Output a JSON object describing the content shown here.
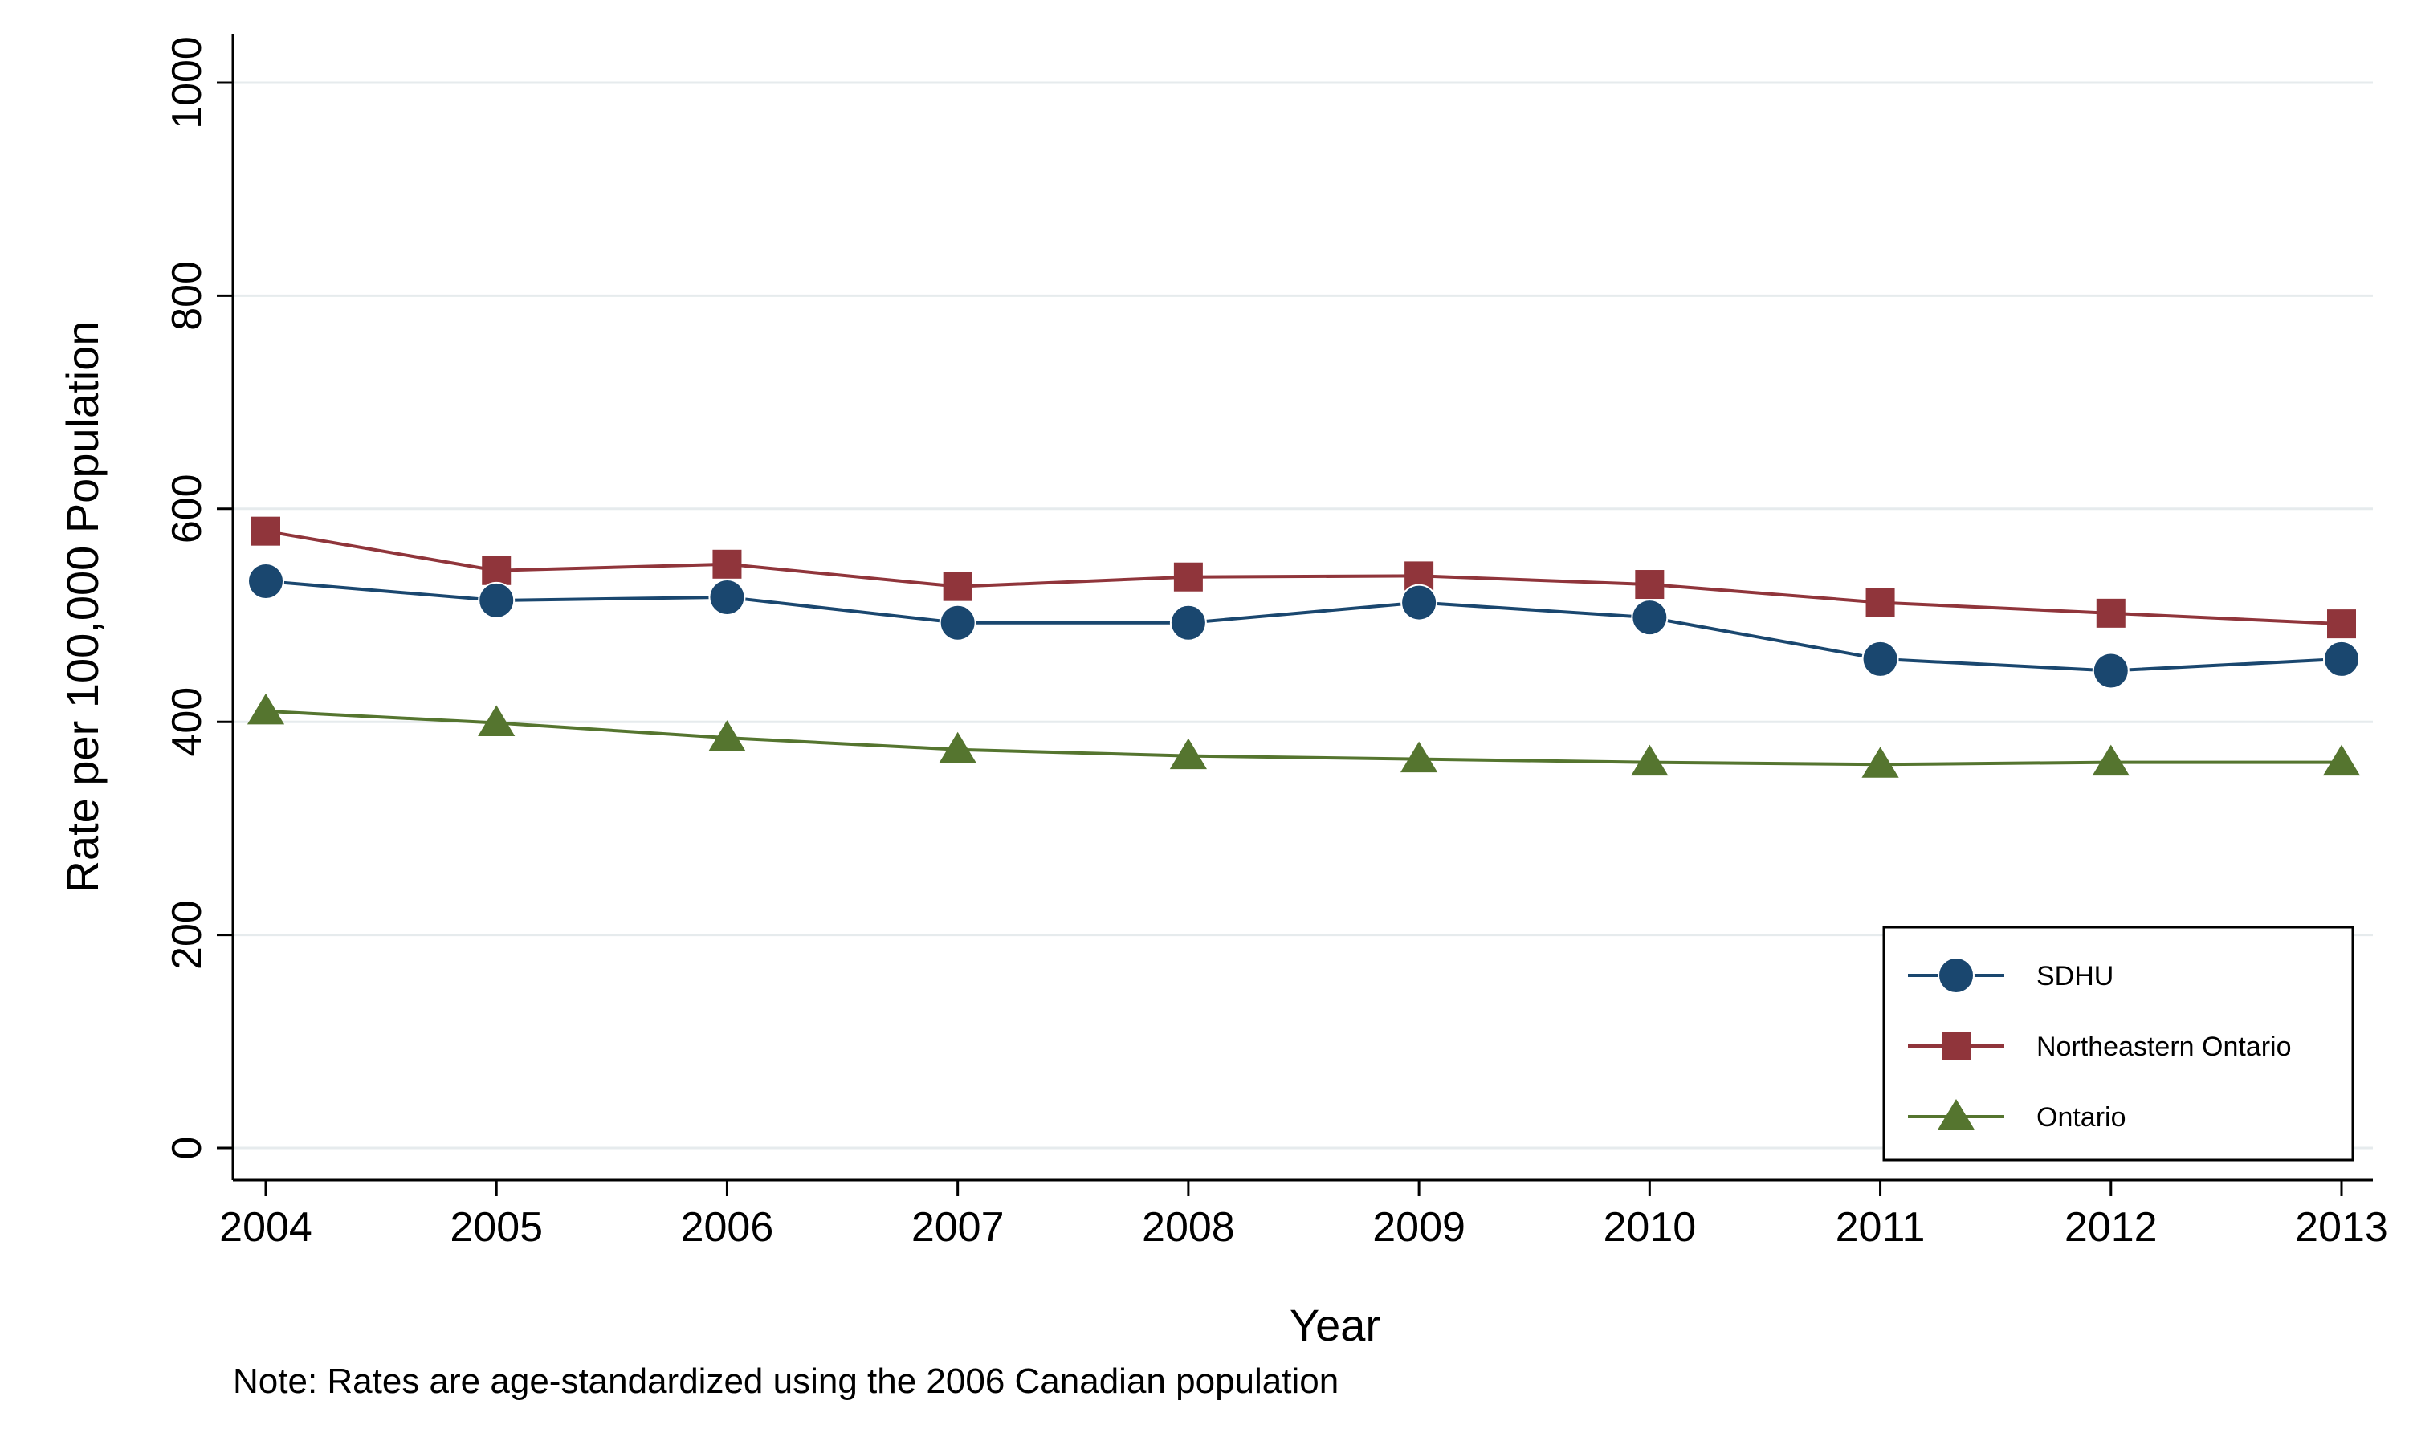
{
  "chart_data": {
    "type": "line",
    "title": "",
    "xlabel": "Year",
    "ylabel": "Rate per 100,000 Population",
    "note": "Note: Rates are age-standardized using the 2006 Canadian population",
    "x": [
      2004,
      2005,
      2006,
      2007,
      2008,
      2009,
      2010,
      2011,
      2012,
      2013
    ],
    "x_tick_labels": [
      "2004",
      "2005",
      "2006",
      "2007",
      "2008",
      "2009",
      "2010",
      "2011",
      "2012",
      "2013"
    ],
    "ylim": [
      0,
      1000
    ],
    "y_ticks": [
      0,
      200,
      400,
      600,
      800,
      1000
    ],
    "y_tick_labels": [
      "0",
      "200",
      "400",
      "600",
      "800",
      "1000"
    ],
    "grid": true,
    "legend_position": "bottom-right",
    "series": [
      {
        "name": "SDHU",
        "marker": "circle",
        "color": "#1a476f",
        "values": [
          532,
          514,
          517,
          493,
          493,
          512,
          498,
          459,
          448,
          459
        ]
      },
      {
        "name": "Northeastern Ontario",
        "marker": "square",
        "color": "#90353b",
        "values": [
          579,
          542,
          548,
          527,
          536,
          537,
          529,
          512,
          502,
          492
        ]
      },
      {
        "name": "Ontario",
        "marker": "triangle",
        "color": "#55752f",
        "values": [
          410,
          399,
          385,
          374,
          368,
          365,
          362,
          360,
          362,
          362
        ]
      }
    ]
  }
}
